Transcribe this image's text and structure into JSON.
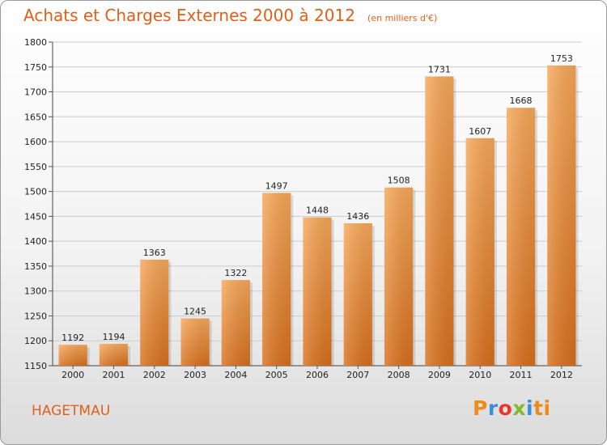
{
  "header": {
    "title": "Achats et Charges Externes 2000 à 2012",
    "unit": "(en milliers d'€)"
  },
  "commune": "HAGETMAU",
  "logo": {
    "letters": [
      "P",
      "r",
      "o",
      "x",
      "i",
      "t",
      "i"
    ]
  },
  "colors": {
    "accent": "#e0601a",
    "bar_top": "#f7a85a",
    "bar_bottom": "#d8701c",
    "grid": "#cccccc"
  },
  "chart_data": {
    "type": "bar",
    "title": "Achats et Charges Externes 2000 à 2012",
    "subtitle": "(en milliers d'€)",
    "xlabel": "",
    "ylabel": "",
    "categories": [
      "2000",
      "2001",
      "2002",
      "2003",
      "2004",
      "2005",
      "2006",
      "2007",
      "2008",
      "2009",
      "2010",
      "2011",
      "2012"
    ],
    "values": [
      1192,
      1194,
      1363,
      1245,
      1322,
      1497,
      1448,
      1436,
      1508,
      1731,
      1607,
      1668,
      1753
    ],
    "data_labels": [
      "1192",
      "1194",
      "1363",
      "1245",
      "1322",
      "1497",
      "1448",
      "1436",
      "1508",
      "1731",
      "1607",
      "1668",
      "1753"
    ],
    "ylim": [
      1150,
      1800
    ],
    "yticks": [
      1150,
      1200,
      1250,
      1300,
      1350,
      1400,
      1450,
      1500,
      1550,
      1600,
      1650,
      1700,
      1750,
      1800
    ],
    "grid": true,
    "legend": "none"
  }
}
